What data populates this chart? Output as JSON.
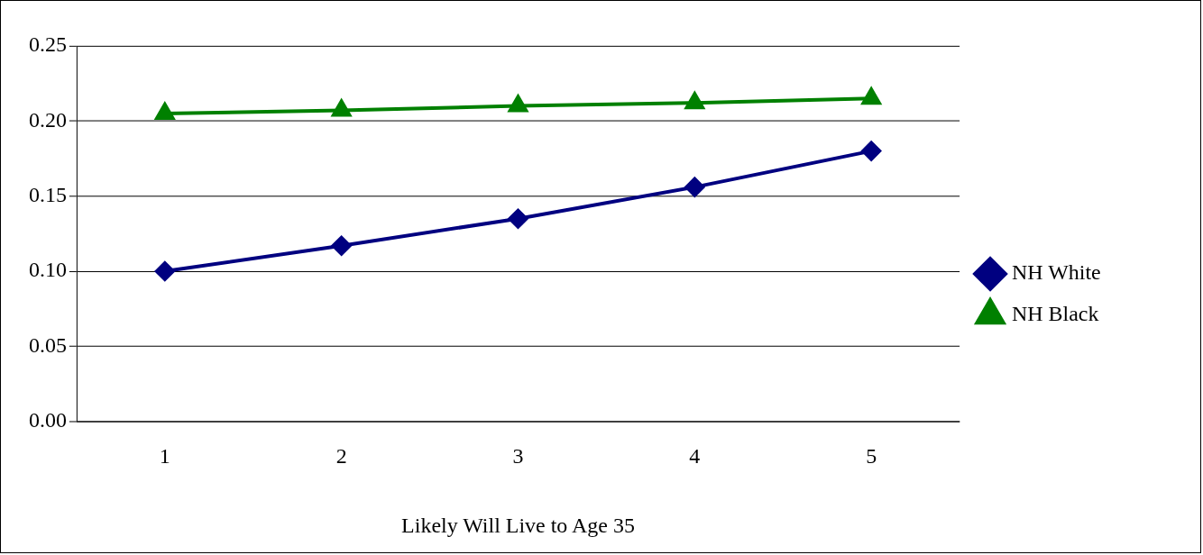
{
  "chart_data": {
    "type": "line",
    "xlabel": "Likely Will Live to Age 35",
    "categories": [
      "1",
      "2",
      "3",
      "4",
      "5"
    ],
    "series": [
      {
        "name": "NH White",
        "color": "#000080",
        "marker": "diamond",
        "values": [
          0.1,
          0.117,
          0.135,
          0.156,
          0.18
        ]
      },
      {
        "name": "NH Black",
        "color": "#008000",
        "marker": "triangle",
        "values": [
          0.205,
          0.207,
          0.21,
          0.212,
          0.215
        ]
      }
    ],
    "ylim": [
      0,
      0.25
    ],
    "yticks": [
      {
        "value": 0,
        "label": "0.00"
      },
      {
        "value": 0.05,
        "label": "0.05"
      },
      {
        "value": 0.1,
        "label": "0.10"
      },
      {
        "value": 0.15,
        "label": "0.15"
      },
      {
        "value": 0.2,
        "label": "0.20"
      },
      {
        "value": 0.25,
        "label": "0.25"
      }
    ],
    "grid": "y",
    "legend": "right",
    "line_style": "solid"
  }
}
